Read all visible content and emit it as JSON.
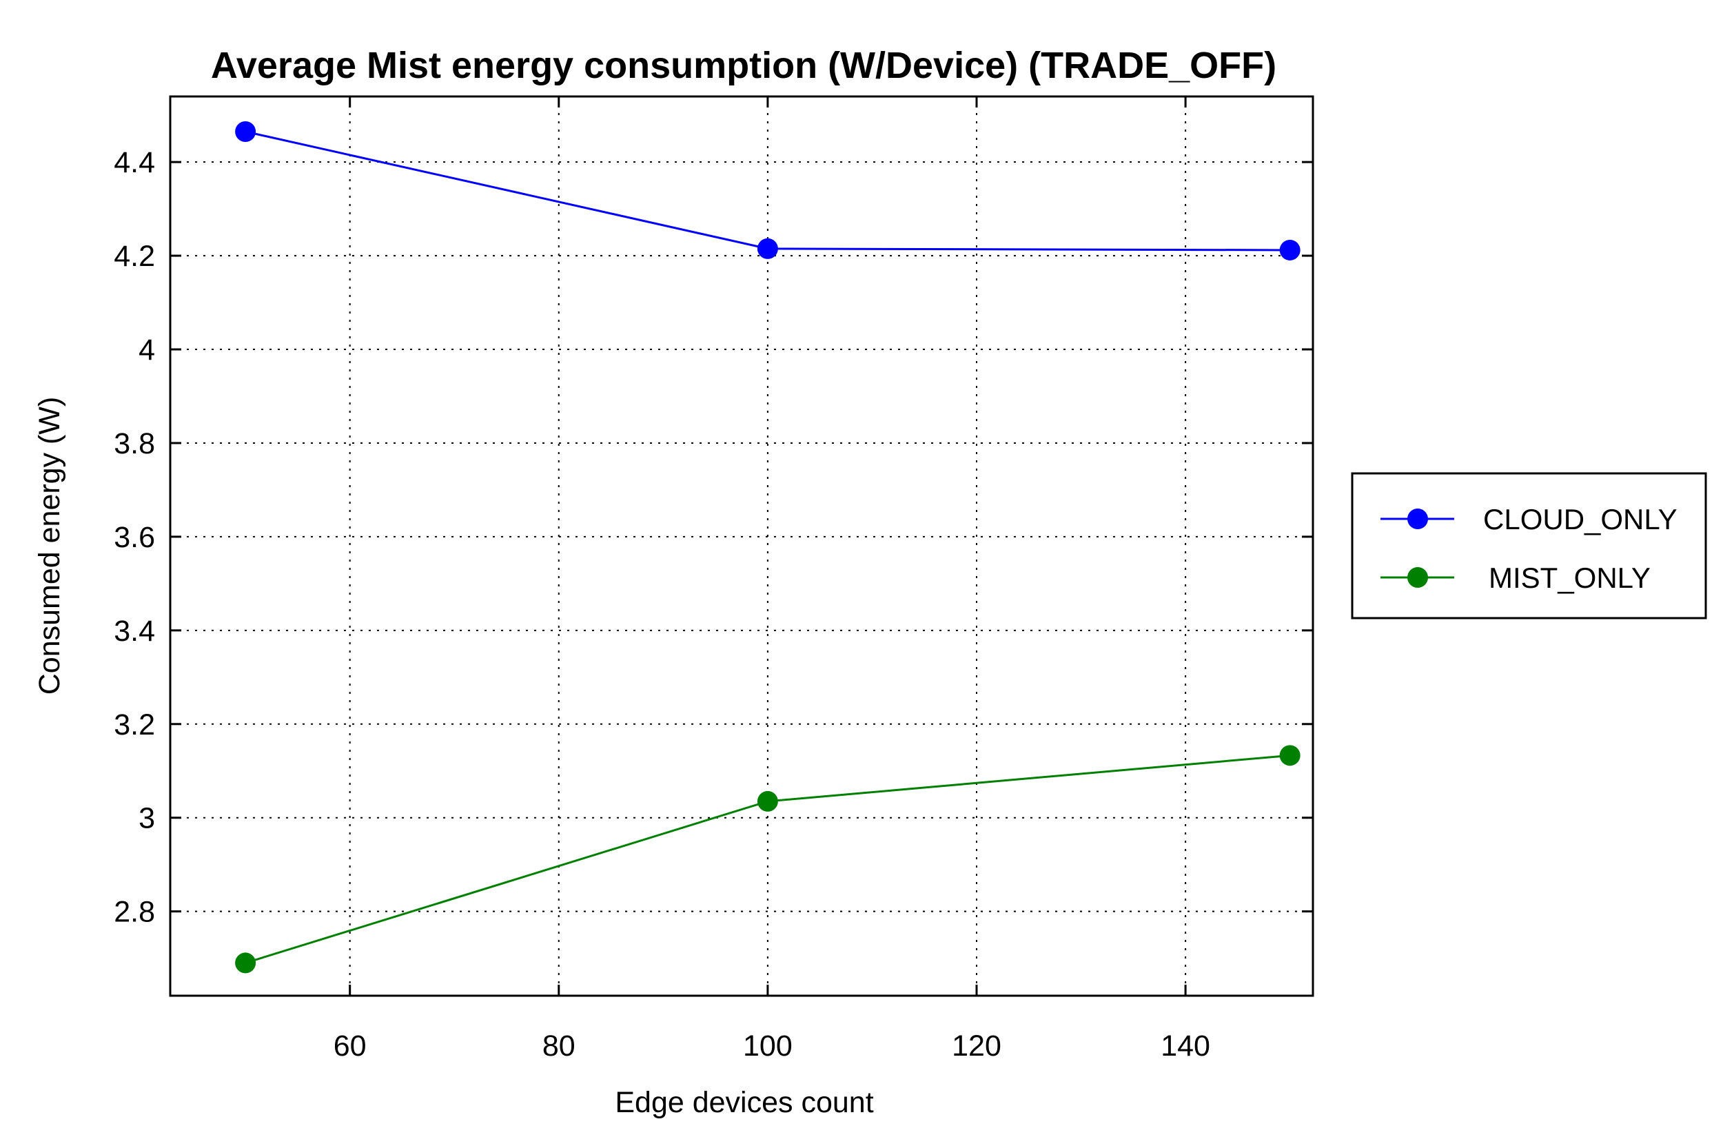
{
  "chart_data": {
    "type": "line",
    "title": "Average Mist energy consumption (W/Device) (TRADE_OFF)",
    "xlabel": "Edge devices count",
    "ylabel": "Consumed energy (W)",
    "xlim": [
      42.8,
      152.2
    ],
    "ylim": [
      2.62,
      4.54
    ],
    "xticks": [
      60,
      80,
      100,
      120,
      140
    ],
    "xtick_labels": [
      "60",
      "80",
      "100",
      "120",
      "140"
    ],
    "yticks": [
      2.8,
      3.0,
      3.2,
      3.4,
      3.6,
      3.8,
      4.0,
      4.2,
      4.4
    ],
    "ytick_labels": [
      "2.8",
      "3",
      "3.2",
      "3.4",
      "3.6",
      "3.8",
      "4",
      "4.2",
      "4.4"
    ],
    "grid": true,
    "legend_position": "right",
    "series": [
      {
        "name": "CLOUD_ONLY",
        "color": "#0000ff",
        "x": [
          50,
          100,
          150
        ],
        "values": [
          4.465,
          4.215,
          4.212
        ]
      },
      {
        "name": "MIST_ONLY",
        "color": "#008000",
        "x": [
          50,
          100,
          150
        ],
        "values": [
          2.69,
          3.035,
          3.133
        ]
      }
    ]
  }
}
